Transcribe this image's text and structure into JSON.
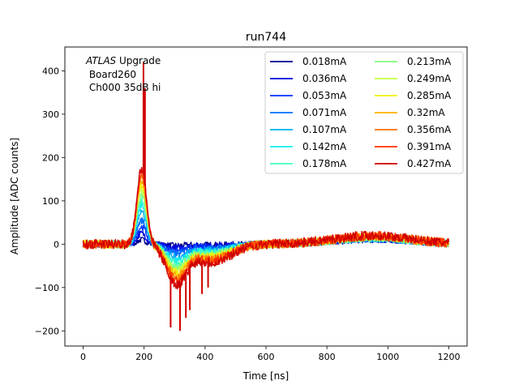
{
  "chart_data": {
    "type": "line",
    "title": "run744",
    "xlabel": "Time [ns]",
    "ylabel": "Amplitude [ADC counts]",
    "xlim": [
      -60,
      1260
    ],
    "ylim": [
      -235,
      455
    ],
    "xticks": [
      0,
      200,
      400,
      600,
      800,
      1000,
      1200
    ],
    "yticks": [
      -200,
      -100,
      0,
      100,
      200,
      300,
      400
    ],
    "xtick_labels": [
      "0",
      "200",
      "400",
      "600",
      "800",
      "1000",
      "1200"
    ],
    "ytick_labels": [
      "−200",
      "−100",
      "0",
      "100",
      "200",
      "300",
      "400"
    ],
    "annotation": {
      "italic": "ATLAS",
      "line1_rest": " Upgrade",
      "line2": " Board260",
      "line3": " Ch000 35dB hi"
    },
    "legend": {
      "location": "top-right",
      "columns": 2
    },
    "series": [
      {
        "name": "0.018mA",
        "color": "#00008f",
        "peak": 10,
        "dip": -3,
        "spike": 0
      },
      {
        "name": "0.036mA",
        "color": "#0000e0",
        "peak": 25,
        "dip": -8,
        "spike": 0
      },
      {
        "name": "0.053mA",
        "color": "#0030ff",
        "peak": 40,
        "dip": -14,
        "spike": 0
      },
      {
        "name": "0.071mA",
        "color": "#0070ff",
        "peak": 55,
        "dip": -20,
        "spike": 0
      },
      {
        "name": "0.107mA",
        "color": "#00b0f0",
        "peak": 75,
        "dip": -28,
        "spike": 0
      },
      {
        "name": "0.142mA",
        "color": "#10f0f0",
        "peak": 90,
        "dip": -35,
        "spike": 0
      },
      {
        "name": "0.178mA",
        "color": "#40ffc0",
        "peak": 105,
        "dip": -42,
        "spike": 0
      },
      {
        "name": "0.213mA",
        "color": "#80ff80",
        "peak": 115,
        "dip": -48,
        "spike": 0
      },
      {
        "name": "0.249mA",
        "color": "#c0ff40",
        "peak": 128,
        "dip": -55,
        "spike": 0
      },
      {
        "name": "0.285mA",
        "color": "#f0f010",
        "peak": 138,
        "dip": -60,
        "spike": 0
      },
      {
        "name": "0.32mA",
        "color": "#ffb000",
        "peak": 148,
        "dip": -66,
        "spike": 0
      },
      {
        "name": "0.356mA",
        "color": "#ff7000",
        "peak": 158,
        "dip": -72,
        "spike": 0
      },
      {
        "name": "0.391mA",
        "color": "#ff3000",
        "peak": 168,
        "dip": -78,
        "spike": 0
      },
      {
        "name": "0.427mA",
        "color": "#d00000",
        "peak": 175,
        "dip": -85,
        "spike": 420
      }
    ]
  }
}
